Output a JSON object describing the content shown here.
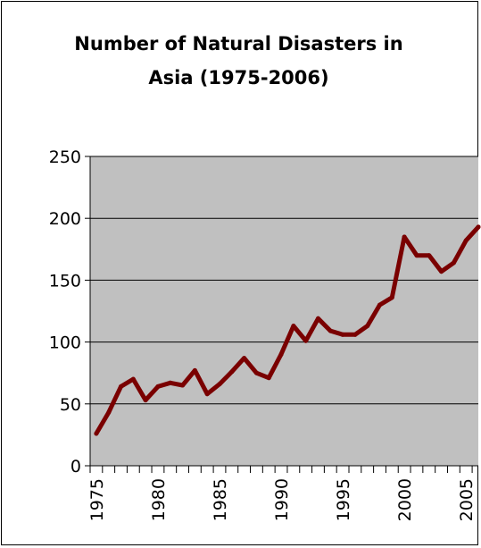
{
  "chart_data": {
    "type": "line",
    "title": "Number of Natural Disasters in Asia (1975-2006)",
    "title_lines": [
      "Number of Natural Disasters in",
      "Asia (1975-2006)"
    ],
    "xlabel": "",
    "ylabel": "",
    "x": [
      1975,
      1976,
      1977,
      1978,
      1979,
      1980,
      1981,
      1982,
      1983,
      1984,
      1985,
      1986,
      1987,
      1988,
      1989,
      1990,
      1991,
      1992,
      1993,
      1994,
      1995,
      1996,
      1997,
      1998,
      1999,
      2000,
      2001,
      2002,
      2003,
      2004,
      2005,
      2006
    ],
    "series": [
      {
        "values": [
          26,
          43,
          64,
          70,
          53,
          64,
          67,
          65,
          77,
          58,
          66,
          76,
          87,
          75,
          71,
          90,
          113,
          101,
          119,
          109,
          106,
          106,
          113,
          130,
          136,
          185,
          170,
          170,
          157,
          164,
          182,
          193
        ],
        "color": "#7a0000"
      }
    ],
    "ylim": [
      0,
      250
    ],
    "yticks": [
      0,
      50,
      100,
      150,
      200,
      250
    ],
    "xtick_labels": [
      1975,
      1980,
      1985,
      1990,
      1995,
      2000,
      2005
    ],
    "grid": true,
    "plot_background": "#c0c0c0",
    "legend": "none"
  }
}
